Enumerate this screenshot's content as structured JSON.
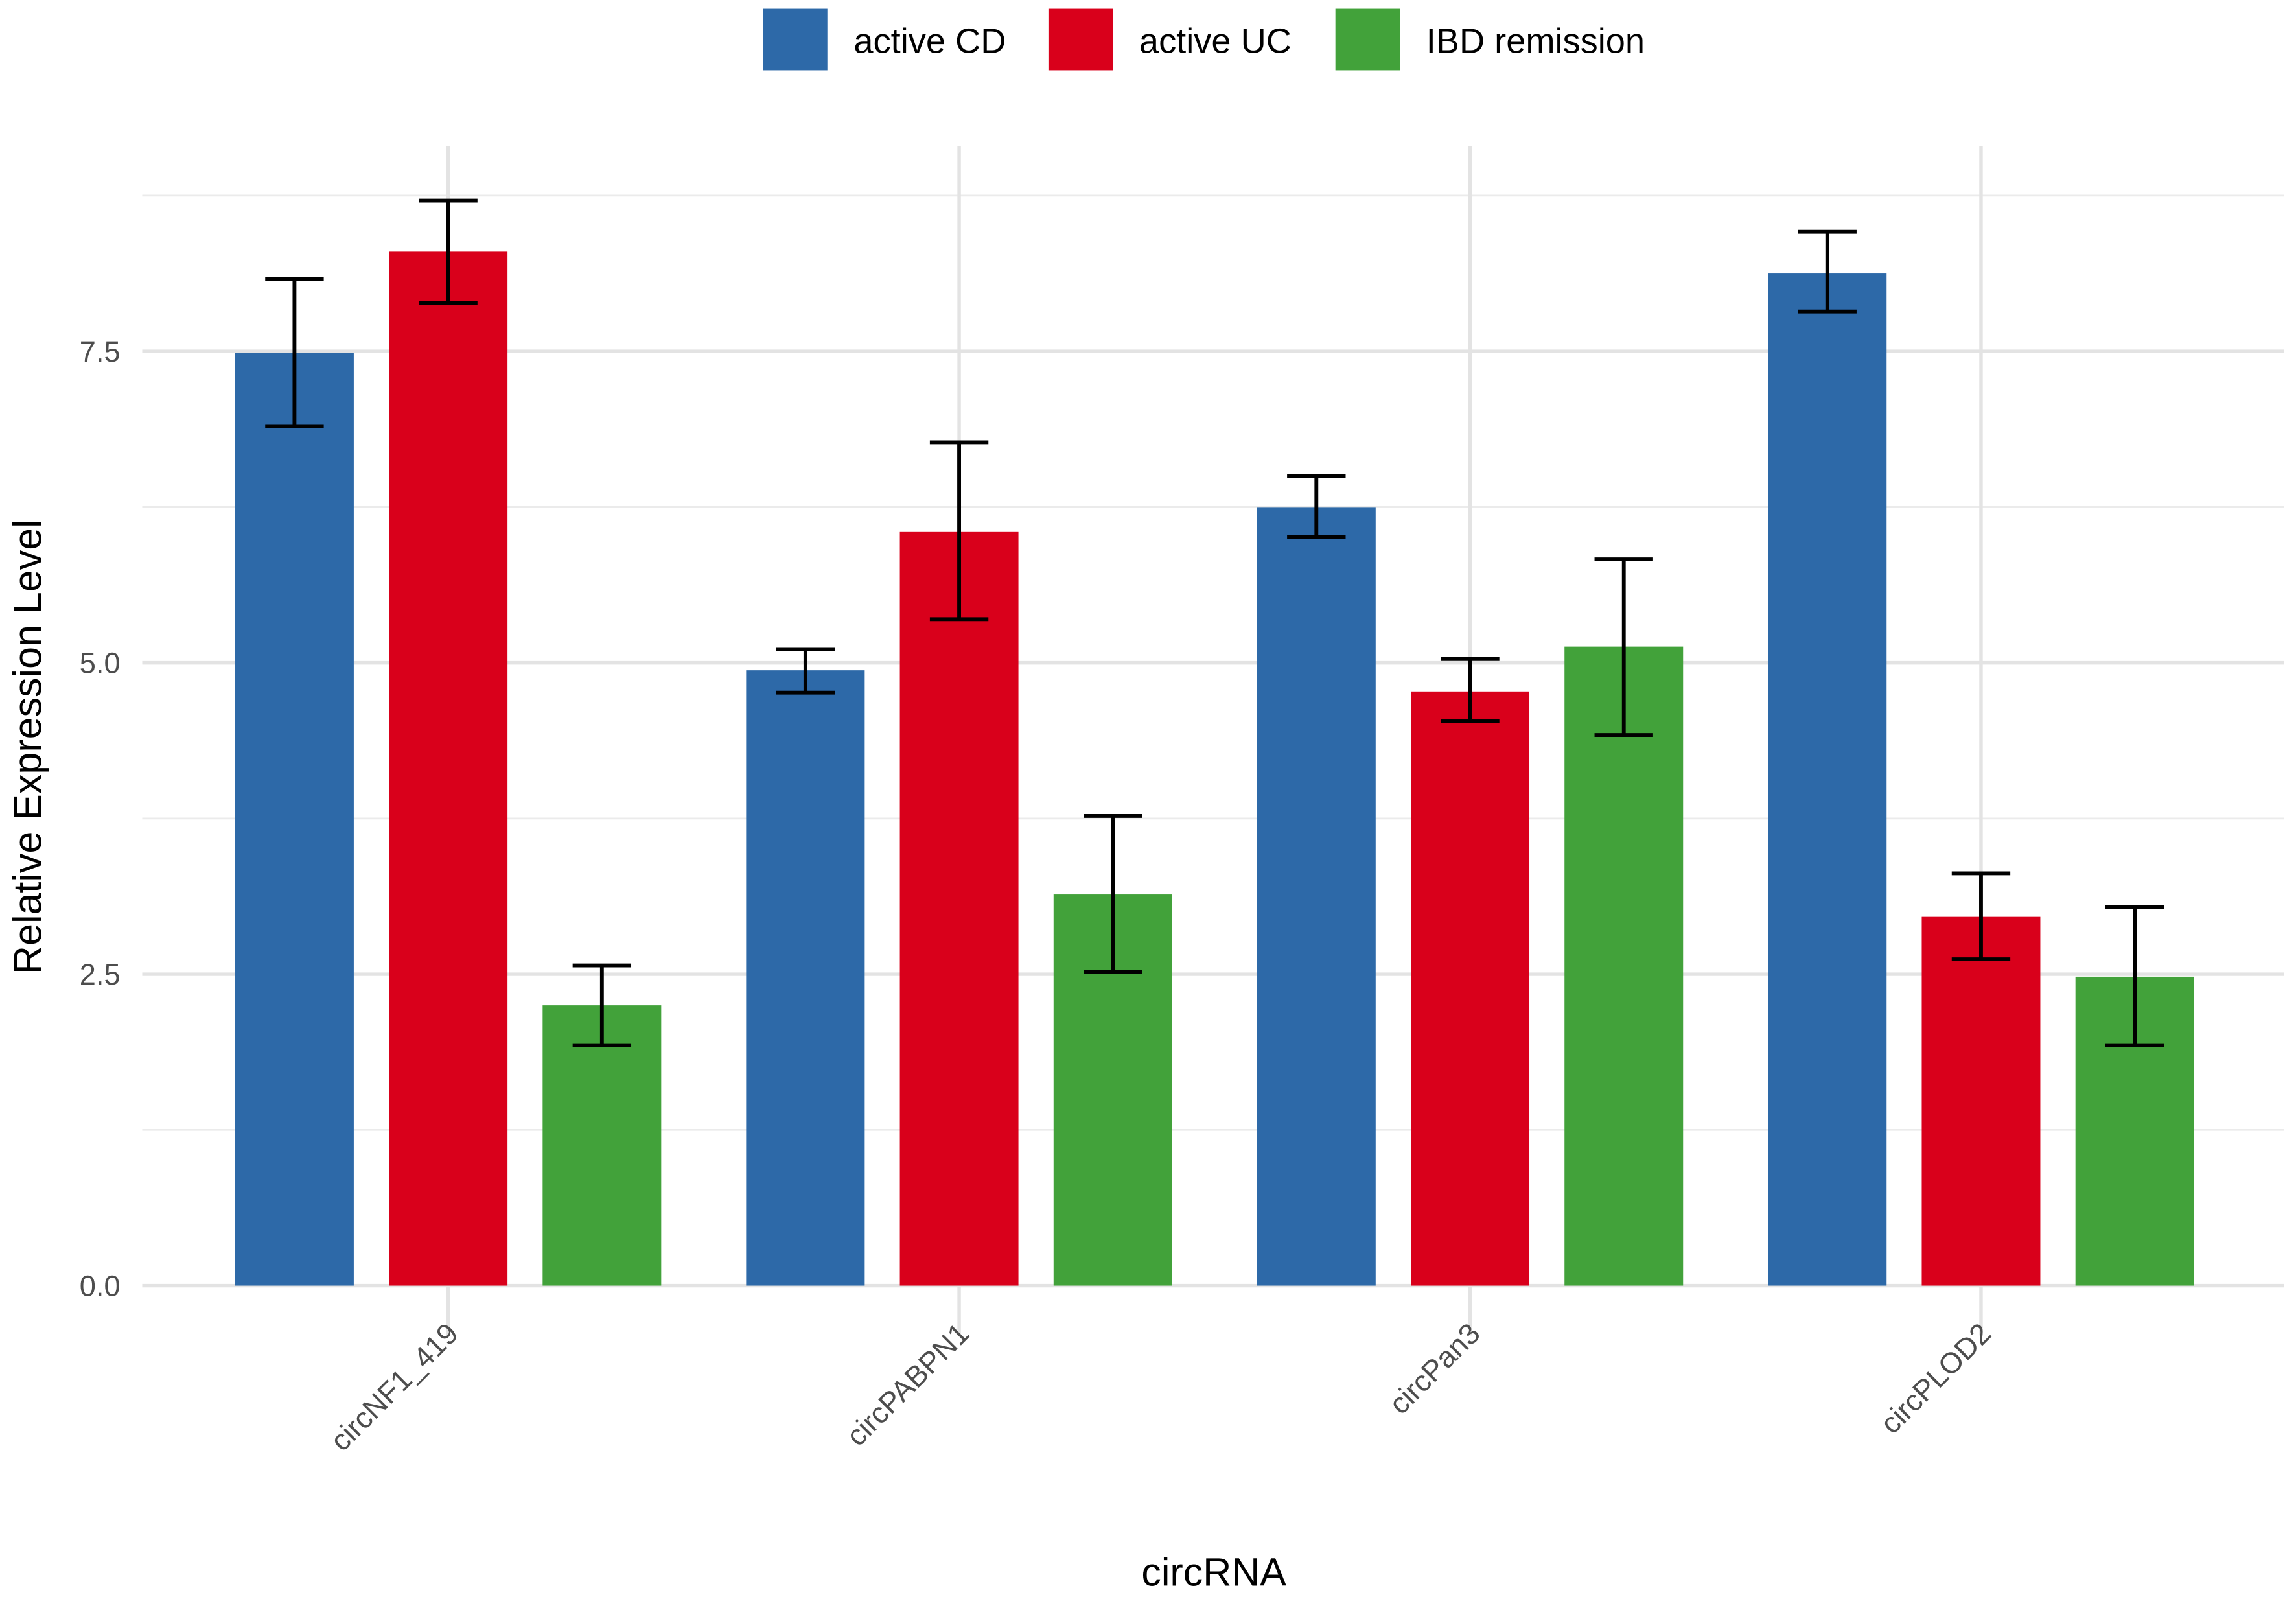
{
  "chart_data": {
    "type": "bar",
    "title": "",
    "xlabel": "circRNA",
    "ylabel": "Relative Expression Level",
    "ylim": [
      0,
      9.1
    ],
    "yticks": [
      "0.0",
      "2.5",
      "5.0",
      "7.5"
    ],
    "grid": true,
    "legend_position": "top",
    "categories": [
      "circNF1_419",
      "circPABPN1",
      "circPan3",
      "circPLOD2"
    ],
    "series": [
      {
        "name": "active CD",
        "color": "#2d69a8",
        "values": [
          7.49,
          4.94,
          6.25,
          8.13
        ],
        "error_low": [
          6.9,
          4.76,
          6.01,
          7.82
        ],
        "error_high": [
          8.08,
          5.11,
          6.5,
          8.46
        ]
      },
      {
        "name": "active UC",
        "color": "#d9001b",
        "values": [
          8.3,
          6.05,
          4.77,
          2.96
        ],
        "error_low": [
          7.89,
          5.35,
          4.53,
          2.62
        ],
        "error_high": [
          8.71,
          6.77,
          5.03,
          3.31
        ]
      },
      {
        "name": "IBD remission",
        "color": "#42a23a",
        "values": [
          2.25,
          3.14,
          5.13,
          2.48
        ],
        "error_low": [
          1.93,
          2.52,
          4.42,
          1.93
        ],
        "error_high": [
          2.57,
          3.77,
          5.83,
          3.04
        ]
      }
    ]
  }
}
